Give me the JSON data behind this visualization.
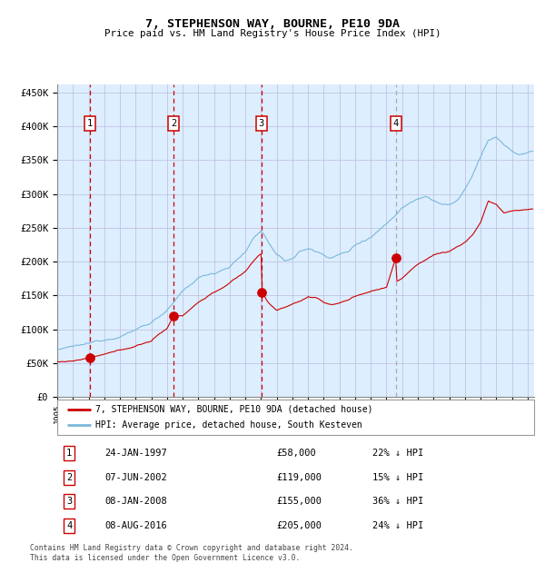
{
  "title": "7, STEPHENSON WAY, BOURNE, PE10 9DA",
  "subtitle": "Price paid vs. HM Land Registry's House Price Index (HPI)",
  "hpi_label": "HPI: Average price, detached house, South Kesteven",
  "property_label": "7, STEPHENSON WAY, BOURNE, PE10 9DA (detached house)",
  "transactions": [
    {
      "num": 1,
      "date": "1997-01-24",
      "price": 58000,
      "pct": "22% ↓ HPI"
    },
    {
      "num": 2,
      "date": "2002-06-07",
      "price": 119000,
      "pct": "15% ↓ HPI"
    },
    {
      "num": 3,
      "date": "2008-01-08",
      "price": 155000,
      "pct": "36% ↓ HPI"
    },
    {
      "num": 4,
      "date": "2016-08-08",
      "price": 205000,
      "pct": "24% ↓ HPI"
    }
  ],
  "ylim": [
    0,
    462000
  ],
  "yticks": [
    0,
    50000,
    100000,
    150000,
    200000,
    250000,
    300000,
    350000,
    400000,
    450000
  ],
  "ytick_labels": [
    "£0",
    "£50K",
    "£100K",
    "£150K",
    "£200K",
    "£250K",
    "£300K",
    "£350K",
    "£400K",
    "£450K"
  ],
  "start_year": 1995,
  "end_year": 2025,
  "hpi_color": "#7ab8d8",
  "property_color": "#cc0000",
  "background_color": "#ddeeff",
  "grid_color": "#bbbbdd",
  "footer": "Contains HM Land Registry data © Crown copyright and database right 2024.\nThis data is licensed under the Open Government Licence v3.0.",
  "hpi_keypoints": {
    "1995.0": 70000,
    "1996.0": 73000,
    "1997.0": 76000,
    "1998.0": 82000,
    "1999.0": 90000,
    "2000.0": 100000,
    "2001.0": 112000,
    "2002.0": 130000,
    "2003.0": 155000,
    "2004.0": 175000,
    "2005.0": 183000,
    "2006.0": 195000,
    "2007.0": 215000,
    "2007.5": 235000,
    "2008.0": 248000,
    "2008.5": 230000,
    "2009.0": 210000,
    "2009.5": 200000,
    "2010.0": 205000,
    "2010.5": 215000,
    "2011.0": 220000,
    "2011.5": 215000,
    "2012.0": 210000,
    "2012.5": 208000,
    "2013.0": 212000,
    "2013.5": 215000,
    "2014.0": 225000,
    "2015.0": 240000,
    "2016.0": 260000,
    "2017.0": 285000,
    "2018.0": 300000,
    "2018.5": 305000,
    "2019.0": 300000,
    "2019.5": 295000,
    "2020.0": 292000,
    "2020.5": 298000,
    "2021.0": 315000,
    "2021.5": 335000,
    "2022.0": 360000,
    "2022.5": 385000,
    "2023.0": 390000,
    "2023.5": 378000,
    "2024.0": 368000,
    "2024.5": 362000,
    "2025.5": 368000
  },
  "prop_keypoints": {
    "1995.0": 52000,
    "1996.0": 54000,
    "1997.08": 58000,
    "1998.0": 62000,
    "1999.0": 67000,
    "2000.0": 74000,
    "2001.0": 82000,
    "2002.0": 100000,
    "2002.42": 119000,
    "2003.0": 120000,
    "2004.0": 140000,
    "2005.0": 155000,
    "2006.0": 168000,
    "2007.0": 185000,
    "2007.5": 200000,
    "2008.0": 212000,
    "2008.08": 155000,
    "2008.5": 138000,
    "2009.0": 128000,
    "2009.5": 132000,
    "2010.0": 138000,
    "2010.5": 142000,
    "2011.0": 148000,
    "2011.5": 145000,
    "2012.0": 138000,
    "2012.5": 135000,
    "2013.0": 138000,
    "2013.5": 142000,
    "2014.0": 148000,
    "2015.0": 155000,
    "2016.0": 162000,
    "2016.58": 205000,
    "2016.67": 170000,
    "2017.0": 175000,
    "2017.5": 185000,
    "2018.0": 195000,
    "2019.0": 210000,
    "2020.0": 215000,
    "2021.0": 228000,
    "2021.5": 240000,
    "2022.0": 258000,
    "2022.5": 290000,
    "2023.0": 285000,
    "2023.5": 272000,
    "2024.0": 275000,
    "2025.5": 278000
  }
}
